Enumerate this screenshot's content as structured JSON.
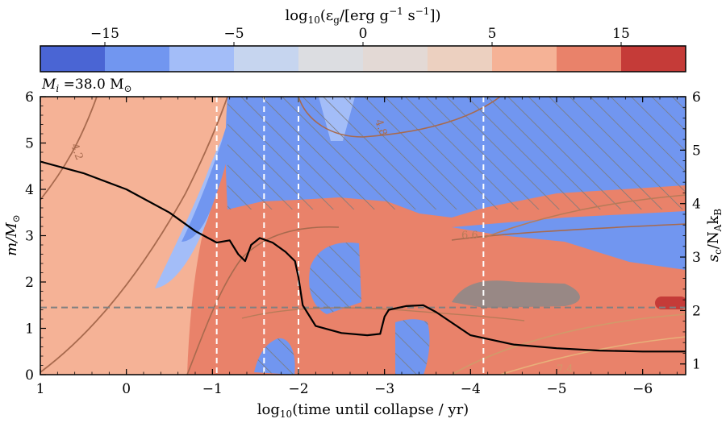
{
  "chart_data": {
    "type": "heatmap",
    "colorbar": {
      "label_main": "log",
      "label_sub": "10",
      "label_rest": "(ε",
      "label_eps_sub": "g",
      "label_tail": "/[erg g",
      "label_exp1": "−1",
      "label_s": " s",
      "label_exp2": "−1",
      "label_end": "])",
      "tick_labels": [
        "−15",
        "−5",
        "0",
        "5",
        "15"
      ],
      "colors": [
        "#4a65d4",
        "#7196f0",
        "#a3bdf8",
        "#c6d5ef",
        "#dcdde1",
        "#e3d9d5",
        "#ecd0c0",
        "#f5b296",
        "#e9826a",
        "#c53b38"
      ]
    },
    "annotation": {
      "mass_symbol": "M",
      "mass_sub": "i",
      "mass_value": " =38.0 M",
      "mass_sun": "⊙"
    },
    "xaxis": {
      "label": "log",
      "label_sub": "10",
      "label_rest": "(time until collapse / yr)",
      "range": [
        1,
        -6.5
      ],
      "ticks": [
        1,
        0,
        -1,
        -2,
        -3,
        -4,
        -5,
        -6
      ],
      "tick_labels": [
        "1",
        "0",
        "−1",
        "−2",
        "−3",
        "−4",
        "−5",
        "−6"
      ]
    },
    "yaxis_left": {
      "label": "m/M",
      "label_sun": "⊙",
      "range": [
        0,
        6
      ],
      "ticks": [
        0,
        1,
        2,
        3,
        4,
        5,
        6
      ],
      "tick_labels": [
        "0",
        "1",
        "2",
        "3",
        "4",
        "5",
        "6"
      ]
    },
    "yaxis_right": {
      "label": "s",
      "label_sub": "c",
      "label_rest": "/N",
      "label_sub2": "A",
      "label_k": "k",
      "label_sub3": "B",
      "range": [
        0.8,
        6
      ],
      "ticks": [
        1,
        2,
        3,
        4,
        5,
        6
      ],
      "tick_labels": [
        "1",
        "2",
        "3",
        "4",
        "5",
        "6"
      ]
    },
    "vertical_dashed_lines": [
      -1.05,
      -1.6,
      -2.0,
      -4.15
    ],
    "horizontal_dashed_line": 1.45,
    "central_entropy": {
      "x": [
        1.0,
        0.5,
        0.0,
        -0.5,
        -0.8,
        -1.05,
        -1.2,
        -1.3,
        -1.38,
        -1.45,
        -1.55,
        -1.7,
        -1.85,
        -1.96,
        -2.0,
        -2.05,
        -2.2,
        -2.5,
        -2.8,
        -2.95,
        -3.0,
        -3.05,
        -3.25,
        -3.45,
        -3.6,
        -4.0,
        -4.5,
        -5.0,
        -5.5,
        -6.0,
        -6.5
      ],
      "y": [
        4.6,
        4.35,
        4.0,
        3.5,
        3.1,
        2.85,
        2.9,
        2.6,
        2.45,
        2.8,
        2.95,
        2.85,
        2.65,
        2.45,
        2.1,
        1.5,
        1.05,
        0.9,
        0.85,
        0.88,
        1.25,
        1.4,
        1.48,
        1.5,
        1.35,
        0.85,
        0.65,
        0.57,
        0.52,
        0.5,
        0.5
      ],
      "units": "m/Msun equivalent position on left axis"
    },
    "contour_labels": [
      "4.2",
      "4.8",
      "6.6",
      "7.4"
    ]
  }
}
